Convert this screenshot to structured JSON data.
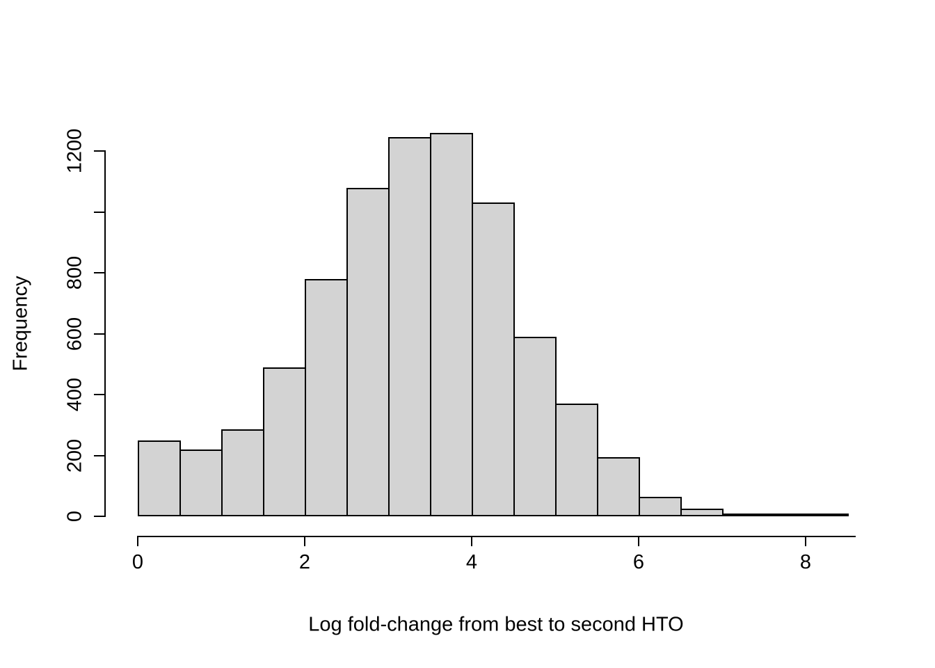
{
  "chart_data": {
    "type": "bar",
    "subtype": "histogram",
    "title": "",
    "xlabel": "Log fold-change from best to second HTO",
    "ylabel": "Frequency",
    "bin_start": 0,
    "bin_width": 0.5,
    "counts": [
      250,
      220,
      285,
      490,
      780,
      1080,
      1245,
      1260,
      1030,
      590,
      370,
      195,
      65,
      25,
      8,
      5,
      3
    ],
    "xlim": [
      0,
      8.5
    ],
    "ylim": [
      0,
      1300
    ],
    "x_ticks": [
      0,
      2,
      4,
      6,
      8
    ],
    "x_tick_labels": [
      "0",
      "2",
      "4",
      "6",
      "8"
    ],
    "y_ticks": [
      0,
      200,
      400,
      600,
      800,
      1000,
      1200
    ],
    "y_tick_labels": [
      "0",
      "200",
      "400",
      "600",
      "800",
      "",
      "1200"
    ],
    "bar_fill": "#d3d3d3",
    "bar_border": "#000000",
    "axis_color": "#000000",
    "grid": "off",
    "legend": "none"
  }
}
